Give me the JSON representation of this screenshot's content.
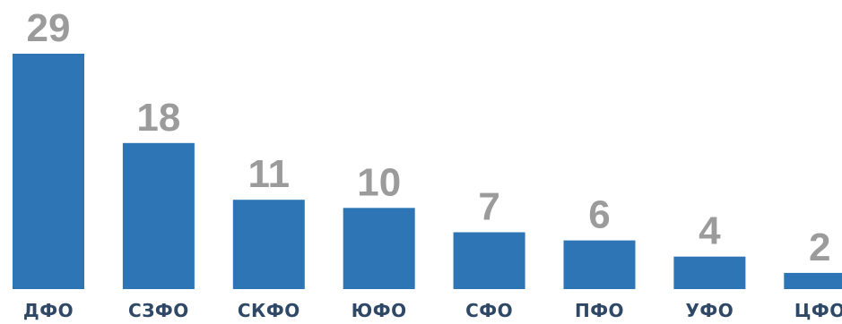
{
  "chart_data": {
    "type": "bar",
    "categories": [
      "ДФО",
      "СЗФО",
      "СКФО",
      "ЮФО",
      "СФО",
      "ПФО",
      "УФО",
      "ЦФО"
    ],
    "values": [
      29,
      18,
      11,
      10,
      7,
      6,
      4,
      2
    ],
    "title": "",
    "xlabel": "",
    "ylabel": "",
    "ylim": [
      0,
      29
    ],
    "grid": false,
    "legend": "none",
    "data_labels": true,
    "colors": {
      "bar": "#2e75b6",
      "value_label": "#9b9b9b",
      "category_label": "#2f4866"
    }
  }
}
